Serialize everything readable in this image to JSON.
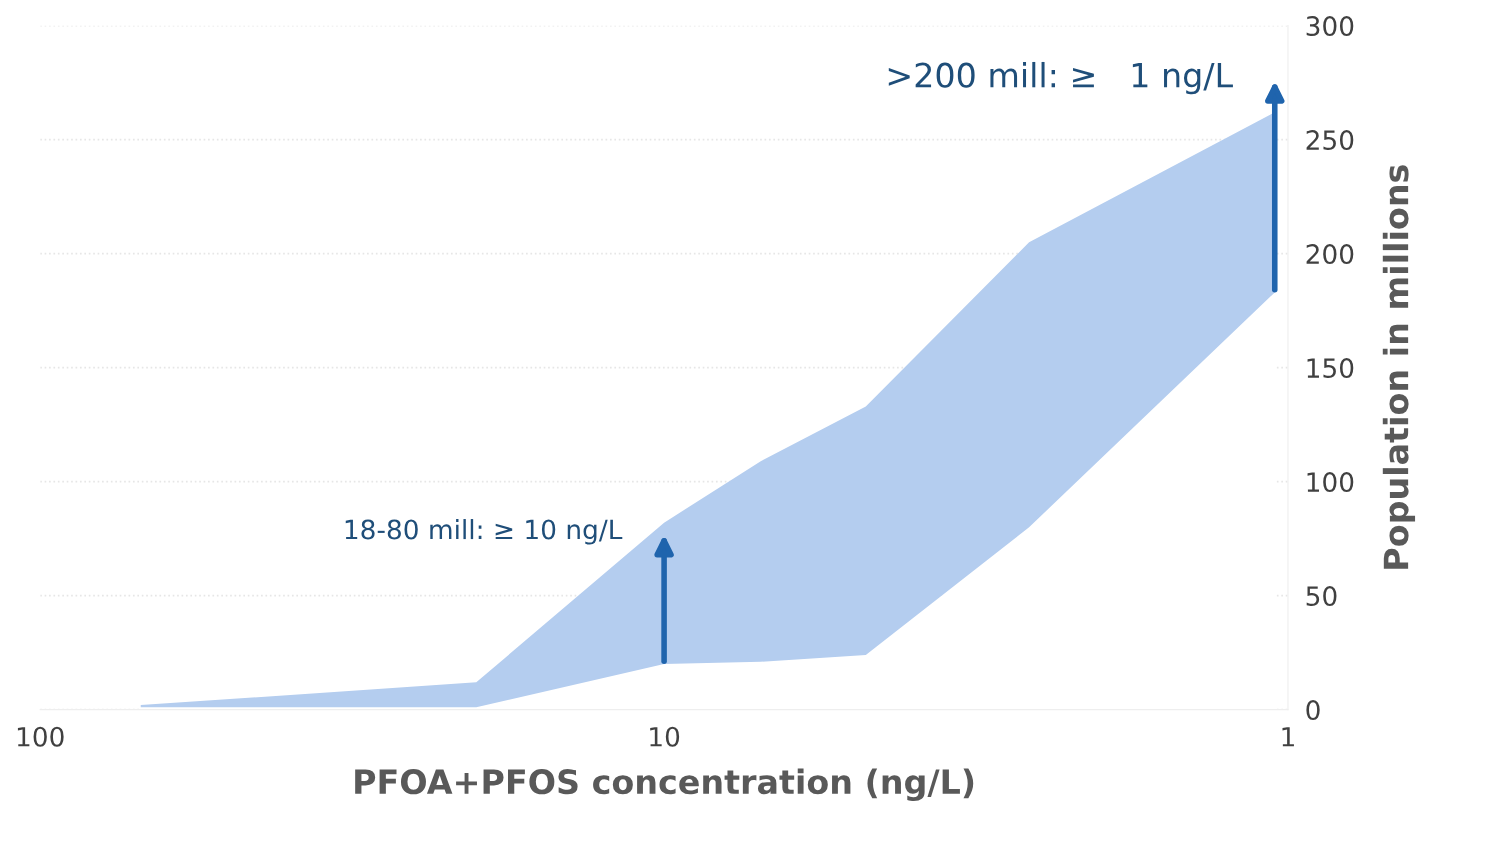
{
  "chart_data": {
    "type": "area",
    "stacked": true,
    "xlabel": "PFOA+PFOS concentration (ng/L)",
    "ylabel": "Population in millions",
    "log": "x",
    "xlim": [
      100,
      1
    ],
    "xticks": [
      100,
      10,
      1
    ],
    "ylim": [
      0,
      300
    ],
    "yticks": [
      0,
      50,
      100,
      150,
      200,
      250,
      300
    ],
    "grid": "y",
    "x": [
      69,
      20,
      10,
      7,
      4.75,
      2.6,
      1.05
    ],
    "series": [
      {
        "color": "#ffffff",
        "values": [
          1,
          1,
          20,
          21,
          24,
          80,
          183
        ]
      },
      {
        "color": "#b4cdef",
        "values": [
          1,
          11,
          62,
          88,
          109,
          125,
          79
        ]
      }
    ],
    "annotations": [
      "18-80 mill: ≥ 10 ng/L",
      ">200 mill: ≥   1 ng/L"
    ]
  }
}
